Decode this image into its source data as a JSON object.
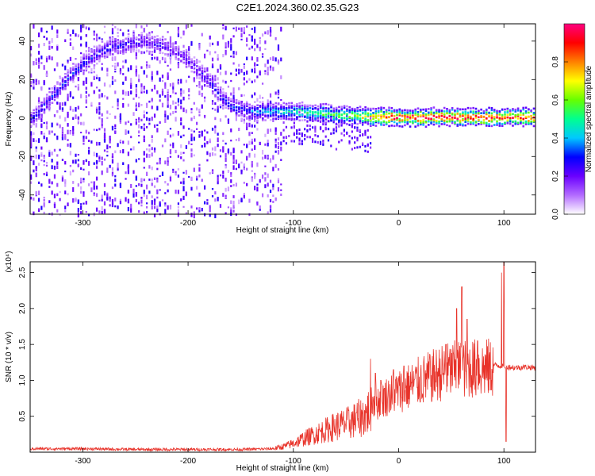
{
  "figure": {
    "title": "C2E1.2024.360.02.35.G23"
  },
  "chart_data": [
    {
      "type": "heatmap",
      "title": "C2E1.2024.360.02.35.G23",
      "xlabel": "Height of straight line (km)",
      "ylabel": "Frequency (Hz)",
      "xlim": [
        -350,
        130
      ],
      "ylim": [
        -50,
        49
      ],
      "x_ticks": [
        -300,
        -200,
        -100,
        0,
        100
      ],
      "y_ticks": [
        -40,
        -20,
        0,
        20,
        40
      ],
      "colorbar": {
        "label": "Normalized spectral amplitude",
        "range": [
          0,
          1
        ],
        "ticks": [
          "0.0",
          "0.2",
          "0.4",
          "0.6",
          "0.8"
        ],
        "colors": [
          "#ffffff",
          "#b36bff",
          "#6a00ff",
          "#0000ff",
          "#00c8ff",
          "#00ff90",
          "#66ff00",
          "#ffff00",
          "#ff8000",
          "#ff0000",
          "#ff0080"
        ]
      },
      "ridge_frequency_hz": {
        "x": [
          -350,
          -340,
          -330,
          -320,
          -310,
          -300,
          -290,
          -280,
          -270,
          -260,
          -250,
          -240,
          -230,
          -220,
          -210,
          -200,
          -190,
          -180,
          -170,
          -160,
          -150,
          -140,
          -130,
          -120,
          -110,
          -100,
          -90,
          -80,
          -70,
          -60,
          -50,
          -40,
          -30,
          -20,
          -10,
          0,
          10,
          20,
          30,
          40,
          50,
          60,
          70,
          80,
          90,
          100,
          110,
          120,
          130
        ],
        "y": [
          0,
          5,
          12,
          18,
          24,
          29,
          33,
          36,
          38,
          39,
          40,
          40,
          39,
          37,
          34,
          30,
          25,
          19,
          12,
          7,
          5,
          4,
          4,
          4,
          4,
          4,
          4,
          3,
          3,
          2,
          2,
          2,
          1,
          1,
          1,
          1,
          1,
          1,
          1,
          1,
          1,
          1,
          1,
          1,
          1,
          1,
          1,
          1,
          1
        ]
      },
      "ridge_amplitude": {
        "x": [
          -350,
          -300,
          -250,
          -200,
          -160,
          -140,
          -120,
          -100,
          -80,
          -60,
          -40,
          -30,
          -20,
          0,
          50,
          100,
          130
        ],
        "y": [
          0.3,
          0.3,
          0.25,
          0.22,
          0.3,
          0.35,
          0.45,
          0.5,
          0.55,
          0.6,
          0.65,
          0.75,
          0.9,
          0.95,
          0.95,
          0.95,
          0.9
        ]
      }
    },
    {
      "type": "line",
      "xlabel": "Height of straight line (km)",
      "ylabel": "SNR (10 * v/v)",
      "exponent_label": "(x10⁴)",
      "color": "#e8332a",
      "xlim": [
        -350,
        130
      ],
      "ylim": [
        0,
        2.65
      ],
      "x_ticks": [
        -300,
        -200,
        -100,
        0,
        100
      ],
      "y_ticks": [
        0.5,
        1.0,
        1.5,
        2.0,
        2.5
      ],
      "y_tick_labels": [
        "0.5",
        "1.0",
        "1.5",
        "2.0",
        "2.5"
      ],
      "envelope": {
        "x": [
          -350,
          -300,
          -250,
          -200,
          -150,
          -120,
          -110,
          -100,
          -90,
          -80,
          -70,
          -60,
          -50,
          -40,
          -30,
          -25,
          -20,
          -10,
          0,
          10,
          20,
          30,
          40,
          50,
          60,
          70,
          80,
          90,
          100,
          110,
          120,
          130
        ],
        "y": [
          0.05,
          0.05,
          0.04,
          0.04,
          0.04,
          0.05,
          0.08,
          0.13,
          0.2,
          0.26,
          0.32,
          0.38,
          0.42,
          0.48,
          0.56,
          0.75,
          0.72,
          0.82,
          0.88,
          0.95,
          1.02,
          1.08,
          1.14,
          1.18,
          1.2,
          1.21,
          1.2,
          1.22,
          1.2,
          1.18,
          1.19,
          1.18
        ]
      },
      "spikes": {
        "x": [
          -40,
          -27,
          -22,
          -17,
          -5,
          5,
          30,
          45,
          55,
          60,
          65,
          75,
          98,
          100,
          102
        ],
        "y": [
          0.55,
          1.3,
          1.1,
          1.0,
          1.15,
          1.2,
          1.35,
          1.5,
          2.0,
          2.3,
          1.85,
          1.55,
          2.5,
          2.65,
          0.15
        ]
      }
    }
  ]
}
